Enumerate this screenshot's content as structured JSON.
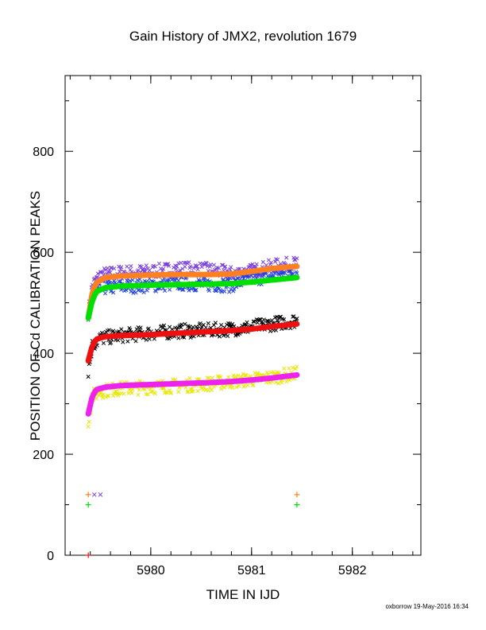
{
  "chart_data": {
    "type": "scatter",
    "title": "Gain History of JMX2, revolution 1679",
    "xlabel": "TIME IN IJD",
    "ylabel": "POSITION OF Cd CALIBRATION PEAKS",
    "xlim": [
      5979.15,
      5982.68
    ],
    "ylim": [
      0,
      950
    ],
    "xticks": [
      5980,
      5981,
      5982
    ],
    "yticks": [
      0,
      200,
      400,
      600,
      800
    ],
    "grid": false,
    "credit": "oxborrow 19-May-2016 16:34",
    "series": [
      {
        "marker": "x",
        "color": "#7a3fe0",
        "x": [
          5979.38,
          5979.42,
          5979.5,
          5979.7,
          5980.0,
          5980.3,
          5980.6,
          5980.8,
          5981.0,
          5981.2,
          5981.45
        ],
        "y": [
          480,
          535,
          555,
          560,
          562,
          568,
          565,
          558,
          563,
          572,
          578
        ]
      },
      {
        "marker": "x",
        "color": "#2040e0",
        "x": [
          5979.38,
          5979.42,
          5979.5,
          5979.7,
          5980.0,
          5980.3,
          5980.6,
          5980.8,
          5981.0,
          5981.2,
          5981.45
        ],
        "y": [
          465,
          515,
          530,
          532,
          535,
          538,
          536,
          535,
          548,
          552,
          562
        ]
      },
      {
        "marker": "x",
        "color": "#000000",
        "x": [
          5979.38,
          5979.42,
          5979.5,
          5979.7,
          5980.0,
          5980.3,
          5980.6,
          5980.8,
          5981.0,
          5981.2,
          5981.45
        ],
        "y": [
          365,
          415,
          430,
          435,
          440,
          444,
          446,
          448,
          452,
          458,
          465
        ]
      },
      {
        "marker": "x",
        "color": "#e8e800",
        "x": [
          5979.38,
          5979.42,
          5979.5,
          5979.7,
          5980.0,
          5980.3,
          5980.6,
          5980.8,
          5981.0,
          5981.2,
          5981.45
        ],
        "y": [
          265,
          315,
          325,
          330,
          333,
          336,
          340,
          344,
          348,
          352,
          360
        ]
      },
      {
        "marker": "line",
        "color": "#ff8020",
        "x": [
          5979.38,
          5979.42,
          5979.46,
          5979.55,
          5979.7,
          5980.0,
          5980.3,
          5980.6,
          5980.8,
          5981.0,
          5981.2,
          5981.45
        ],
        "y": [
          470,
          520,
          540,
          550,
          553,
          555,
          556,
          556,
          557,
          562,
          568,
          572
        ]
      },
      {
        "marker": "line",
        "color": "#00e000",
        "x": [
          5979.38,
          5979.42,
          5979.46,
          5979.55,
          5979.7,
          5980.0,
          5980.3,
          5980.6,
          5980.8,
          5981.0,
          5981.2,
          5981.45
        ],
        "y": [
          470,
          505,
          522,
          530,
          533,
          535,
          536,
          537,
          538,
          541,
          545,
          550
        ]
      },
      {
        "marker": "line",
        "color": "#ee1010",
        "x": [
          5979.38,
          5979.42,
          5979.46,
          5979.55,
          5979.7,
          5980.0,
          5980.3,
          5980.6,
          5980.8,
          5981.0,
          5981.2,
          5981.45
        ],
        "y": [
          385,
          415,
          428,
          433,
          435,
          437,
          440,
          443,
          445,
          448,
          453,
          458
        ]
      },
      {
        "marker": "line",
        "color": "#ee22ee",
        "x": [
          5979.38,
          5979.42,
          5979.46,
          5979.55,
          5979.7,
          5980.0,
          5980.3,
          5980.6,
          5980.8,
          5981.0,
          5981.2,
          5981.45
        ],
        "y": [
          280,
          315,
          328,
          333,
          336,
          338,
          340,
          342,
          344,
          347,
          351,
          357
        ]
      }
    ],
    "markers": [
      {
        "symbol": "+",
        "color": "#ff8020",
        "x": [
          5979.38,
          5981.45
        ],
        "y": [
          120,
          120
        ]
      },
      {
        "symbol": "x",
        "color": "#7a3fe0",
        "x": [
          5979.44,
          5979.5
        ],
        "y": [
          120,
          120
        ]
      },
      {
        "symbol": "+",
        "color": "#00e000",
        "x": [
          5979.38,
          5981.45
        ],
        "y": [
          100,
          100
        ]
      },
      {
        "symbol": "+",
        "color": "#ee1010",
        "x": [
          5979.38
        ],
        "y": [
          0
        ]
      }
    ]
  }
}
